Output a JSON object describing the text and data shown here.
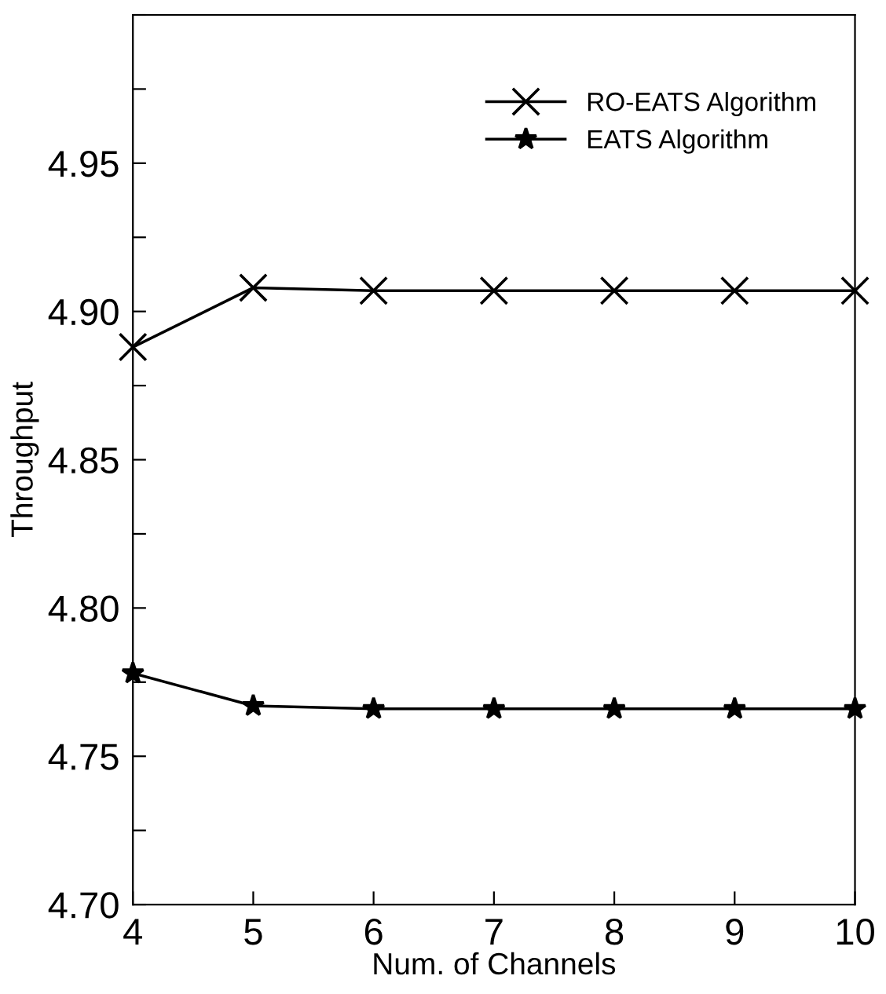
{
  "chart_data": {
    "type": "line",
    "xlabel": "Num. of Channels",
    "ylabel": "Throughput",
    "x": [
      4,
      5,
      6,
      7,
      8,
      9,
      10
    ],
    "series": [
      {
        "name": "RO-EATS Algorithm",
        "color": "#000000",
        "marker": "cross",
        "values": [
          4.888,
          4.908,
          4.907,
          4.907,
          4.907,
          4.907,
          4.907
        ]
      },
      {
        "name": "EATS Algorithm",
        "color": "#000000",
        "marker": "star",
        "values": [
          4.778,
          4.767,
          4.766,
          4.766,
          4.766,
          4.766,
          4.766
        ]
      }
    ],
    "xlim": [
      4,
      10
    ],
    "xticks": [
      4,
      5,
      6,
      7,
      8,
      9,
      10
    ],
    "ylim": [
      4.7,
      5.0
    ],
    "yticks": [
      {
        "value": 4.7,
        "label": "4.70"
      },
      {
        "value": 4.725,
        "label": null
      },
      {
        "value": 4.75,
        "label": "4.75"
      },
      {
        "value": 4.775,
        "label": null
      },
      {
        "value": 4.8,
        "label": "4.80"
      },
      {
        "value": 4.825,
        "label": null
      },
      {
        "value": 4.85,
        "label": "4.85"
      },
      {
        "value": 4.875,
        "label": null
      },
      {
        "value": 4.9,
        "label": "4.90"
      },
      {
        "value": 4.925,
        "label": null
      },
      {
        "value": 4.95,
        "label": "4.95"
      },
      {
        "value": 4.975,
        "label": null
      },
      {
        "value": 5.0,
        "label": null
      }
    ],
    "legend": "top right",
    "grid": false,
    "line_style": "solid"
  }
}
